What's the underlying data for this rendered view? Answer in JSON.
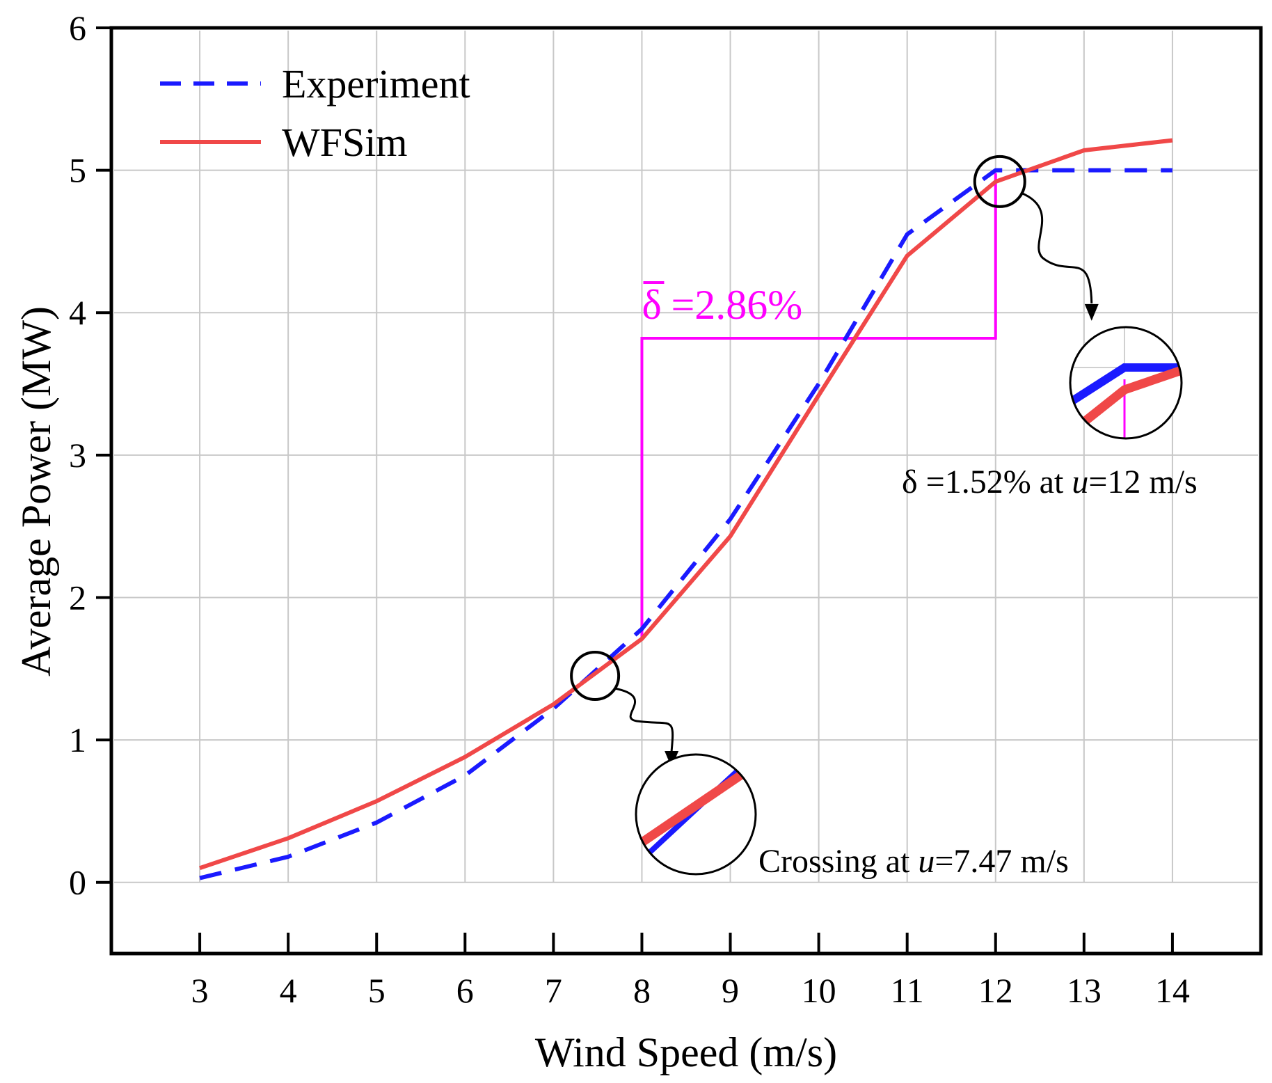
{
  "chart_data": {
    "type": "line",
    "xlabel": "Wind Speed (m/s)",
    "ylabel": "Average Power (MW)",
    "xlim": [
      2,
      15
    ],
    "ylim": [
      -0.5,
      6
    ],
    "x_ticks": [
      3,
      4,
      5,
      6,
      7,
      8,
      9,
      10,
      11,
      12,
      13,
      14
    ],
    "y_ticks": [
      0,
      1,
      2,
      3,
      4,
      5,
      6
    ],
    "grid": true,
    "legend_position": "top-left",
    "series": [
      {
        "name": "Experiment",
        "style": "dashed",
        "color": "#1a1aff",
        "x": [
          3,
          4,
          5,
          6,
          7,
          8,
          9,
          10,
          11,
          12,
          13,
          14
        ],
        "y": [
          0.03,
          0.18,
          0.42,
          0.75,
          1.22,
          1.78,
          2.55,
          3.5,
          4.55,
          5.0,
          5.0,
          5.0
        ]
      },
      {
        "name": "WFSim",
        "style": "solid",
        "color": "#f04848",
        "x": [
          3,
          4,
          5,
          6,
          7,
          8,
          9,
          10,
          11,
          12,
          13,
          14
        ],
        "y": [
          0.1,
          0.31,
          0.57,
          0.88,
          1.25,
          1.71,
          2.43,
          3.42,
          4.4,
          4.92,
          5.14,
          5.21
        ]
      }
    ],
    "annotations": {
      "mean_delta": {
        "label_symbol": "δ",
        "label_value": "=2.86%",
        "color": "#ff00ff",
        "bracket": {
          "x_start": 8,
          "x_end": 12,
          "y_top": 3.82,
          "y_low": 1.72,
          "y_high": 4.98
        }
      },
      "crossing": {
        "text_prefix": "Crossing at ",
        "var": "u",
        "text_suffix": "=7.47 m/s",
        "x": 7.47,
        "y": 1.45
      },
      "point_delta": {
        "text_prefix": "δ =1.52% at ",
        "var": "u",
        "text_suffix": "=12 m/s",
        "x": 12,
        "y": 4.95
      }
    }
  }
}
